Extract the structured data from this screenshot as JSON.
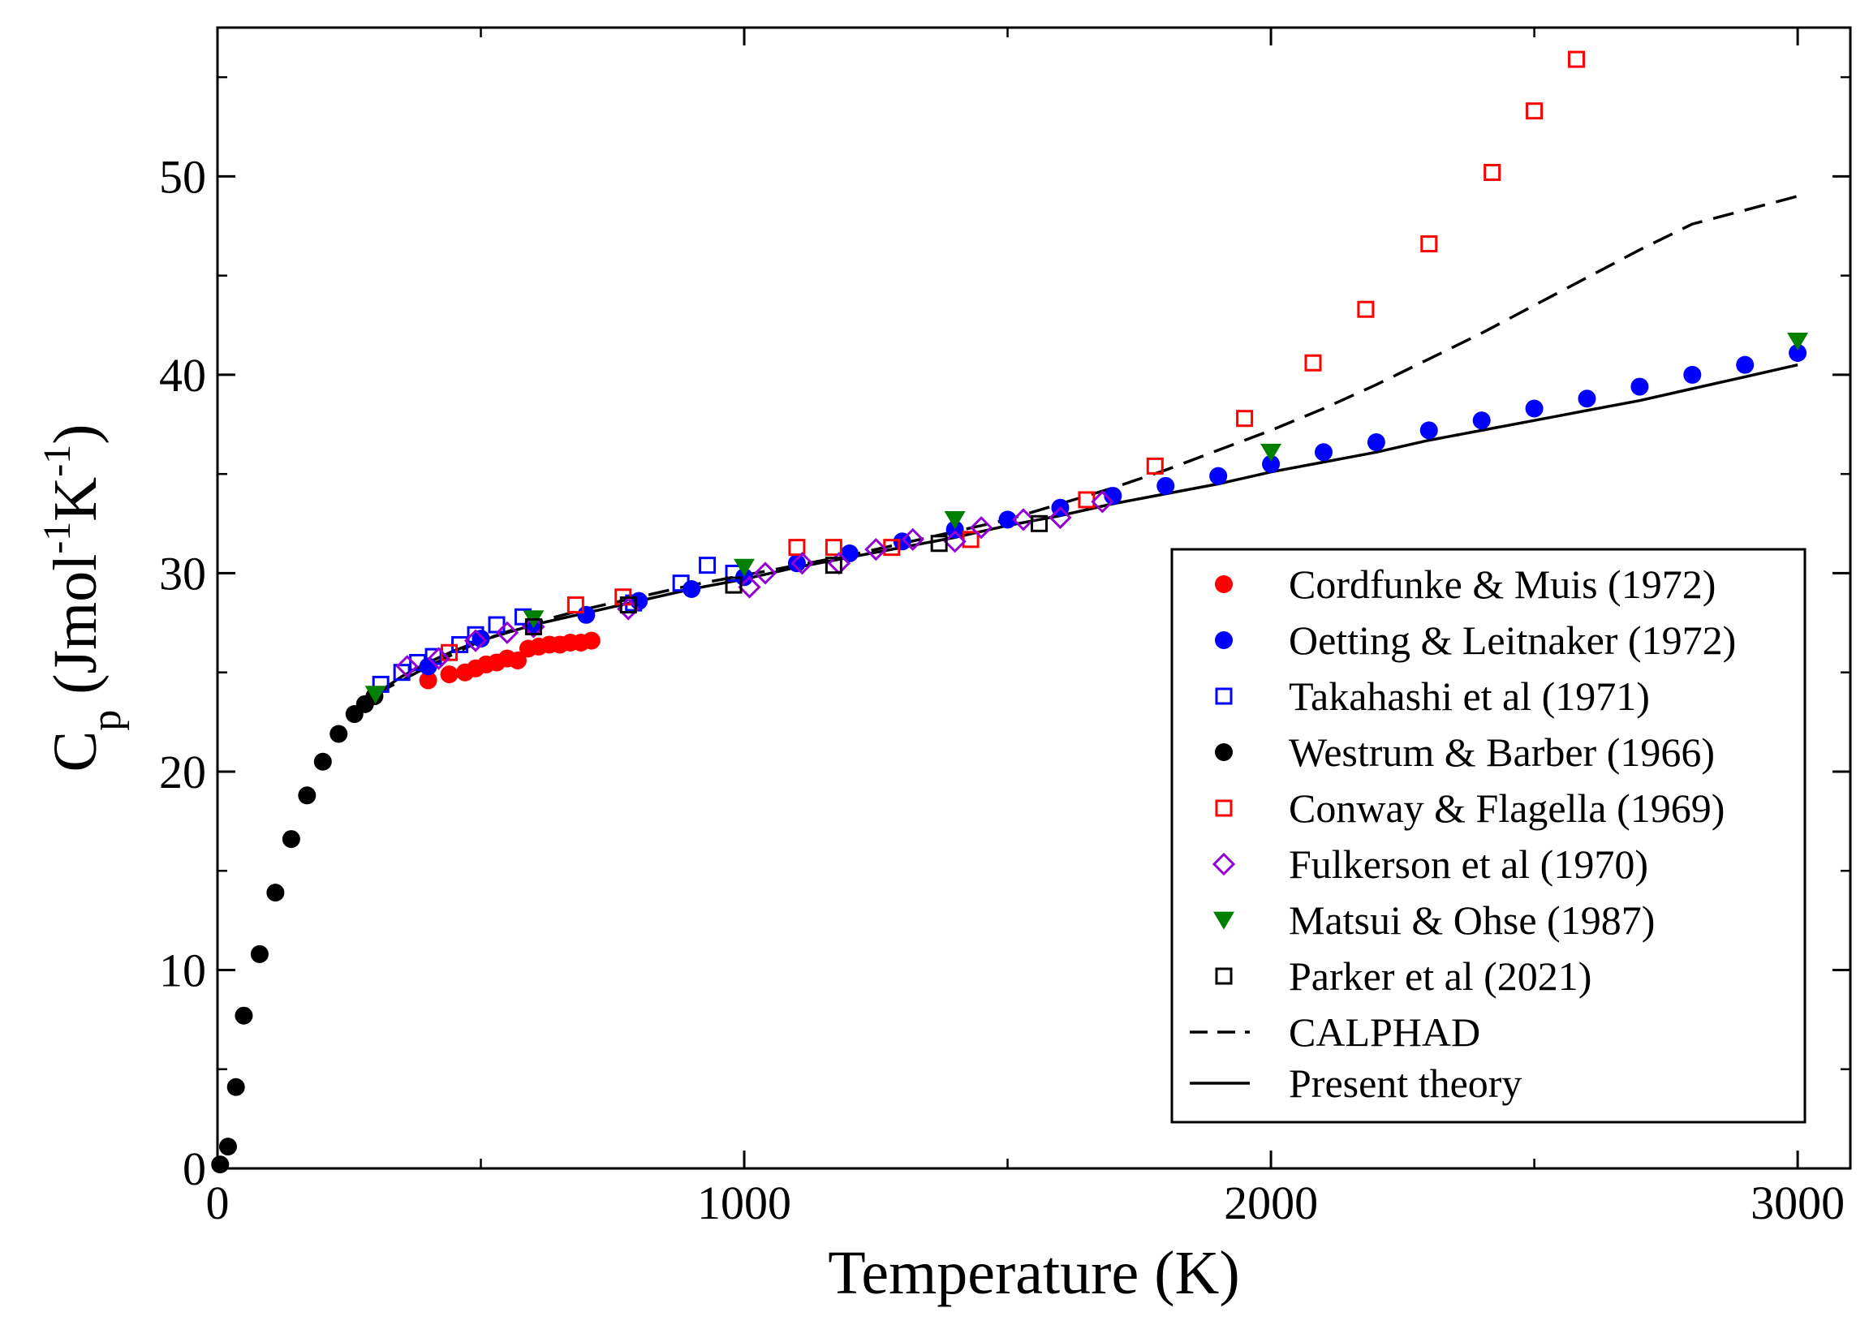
{
  "chart_data": {
    "type": "scatter",
    "title": "",
    "xlabel": "Temperature (K)",
    "ylabel": {
      "main": "C",
      "sub": "p",
      "unit_open": " (Jmol",
      "exp1": "-1",
      "unit_mid": "K",
      "exp2": "-1",
      "unit_close": ")"
    },
    "xlim": [
      0,
      3100
    ],
    "ylim": [
      0,
      57.5
    ],
    "xticks": [
      0,
      1000,
      2000,
      3000
    ],
    "xtick_labels": [
      "0",
      "1000",
      "2000",
      "3000"
    ],
    "yticks": [
      0,
      10,
      20,
      30,
      40,
      50
    ],
    "ytick_labels": [
      "0",
      "10",
      "20",
      "30",
      "40",
      "50"
    ],
    "x_minor_step": 500,
    "y_minor_step": 5,
    "grid": false,
    "legend_position": "bottom-right",
    "series": [
      {
        "name": "Cordfunke & Muis (1972)",
        "marker": "filled-circle",
        "color": "#ff0000",
        "points": [
          [
            400,
            24.6
          ],
          [
            440,
            24.9
          ],
          [
            470,
            25.0
          ],
          [
            490,
            25.2
          ],
          [
            510,
            25.4
          ],
          [
            530,
            25.5
          ],
          [
            550,
            25.7
          ],
          [
            570,
            25.6
          ],
          [
            590,
            26.2
          ],
          [
            610,
            26.3
          ],
          [
            630,
            26.4
          ],
          [
            650,
            26.4
          ],
          [
            670,
            26.5
          ],
          [
            690,
            26.5
          ],
          [
            710,
            26.6
          ]
        ]
      },
      {
        "name": "Oetting & Leitnaker (1972)",
        "marker": "filled-circle",
        "color": "#0000ff",
        "points": [
          [
            400,
            25.3
          ],
          [
            500,
            26.7
          ],
          [
            600,
            27.4
          ],
          [
            700,
            27.9
          ],
          [
            800,
            28.6
          ],
          [
            900,
            29.2
          ],
          [
            1000,
            29.8
          ],
          [
            1100,
            30.5
          ],
          [
            1200,
            31.0
          ],
          [
            1300,
            31.6
          ],
          [
            1400,
            32.2
          ],
          [
            1500,
            32.7
          ],
          [
            1600,
            33.3
          ],
          [
            1700,
            33.9
          ],
          [
            1800,
            34.4
          ],
          [
            1900,
            34.9
          ],
          [
            2000,
            35.5
          ],
          [
            2100,
            36.1
          ],
          [
            2200,
            36.6
          ],
          [
            2300,
            37.2
          ],
          [
            2400,
            37.7
          ],
          [
            2500,
            38.3
          ],
          [
            2600,
            38.8
          ],
          [
            2700,
            39.4
          ],
          [
            2800,
            40.0
          ],
          [
            2900,
            40.5
          ],
          [
            3000,
            41.1
          ]
        ]
      },
      {
        "name": "Takahashi et al (1971)",
        "marker": "open-square",
        "color": "#0000ff",
        "points": [
          [
            310,
            24.4
          ],
          [
            350,
            25.0
          ],
          [
            380,
            25.5
          ],
          [
            410,
            25.8
          ],
          [
            460,
            26.4
          ],
          [
            490,
            26.9
          ],
          [
            530,
            27.4
          ],
          [
            580,
            27.8
          ],
          [
            790,
            28.5
          ],
          [
            880,
            29.5
          ],
          [
            930,
            30.4
          ],
          [
            980,
            30.0
          ]
        ]
      },
      {
        "name": "Westrum & Barber (1966)",
        "marker": "filled-circle",
        "color": "#000000",
        "points": [
          [
            5,
            0.2
          ],
          [
            20,
            1.1
          ],
          [
            35,
            4.1
          ],
          [
            50,
            7.7
          ],
          [
            80,
            10.8
          ],
          [
            110,
            13.9
          ],
          [
            140,
            16.6
          ],
          [
            170,
            18.8
          ],
          [
            200,
            20.5
          ],
          [
            230,
            21.9
          ],
          [
            260,
            22.9
          ],
          [
            280,
            23.4
          ],
          [
            298,
            23.8
          ]
        ]
      },
      {
        "name": "Conway & Flagella (1969)",
        "marker": "open-square",
        "color": "#ff0000",
        "points": [
          [
            440,
            26.0
          ],
          [
            680,
            28.4
          ],
          [
            770,
            28.8
          ],
          [
            1100,
            31.3
          ],
          [
            1170,
            31.3
          ],
          [
            1280,
            31.3
          ],
          [
            1430,
            31.7
          ],
          [
            1650,
            33.7
          ],
          [
            1780,
            35.4
          ],
          [
            1950,
            37.8
          ],
          [
            2080,
            40.6
          ],
          [
            2180,
            43.3
          ],
          [
            2300,
            46.6
          ],
          [
            2420,
            50.2
          ],
          [
            2500,
            53.3
          ],
          [
            2580,
            55.9
          ]
        ]
      },
      {
        "name": "Fulkerson et al (1970)",
        "marker": "open-diamond",
        "color": "#9400d3",
        "points": [
          [
            360,
            25.3
          ],
          [
            420,
            25.7
          ],
          [
            490,
            26.6
          ],
          [
            550,
            27.0
          ],
          [
            600,
            27.3
          ],
          [
            780,
            28.2
          ],
          [
            1010,
            29.3
          ],
          [
            1040,
            30.0
          ],
          [
            1110,
            30.5
          ],
          [
            1180,
            30.5
          ],
          [
            1250,
            31.2
          ],
          [
            1320,
            31.7
          ],
          [
            1400,
            31.6
          ],
          [
            1450,
            32.3
          ],
          [
            1530,
            32.7
          ],
          [
            1600,
            32.8
          ],
          [
            1680,
            33.6
          ]
        ]
      },
      {
        "name": "Matsui & Ohse (1987)",
        "marker": "filled-triangle-down",
        "color": "#008000",
        "points": [
          [
            300,
            23.9
          ],
          [
            600,
            27.7
          ],
          [
            1000,
            30.3
          ],
          [
            1400,
            32.7
          ],
          [
            2000,
            36.1
          ],
          [
            3000,
            41.7
          ]
        ]
      },
      {
        "name": "Parker et al (2021)",
        "marker": "open-square",
        "color": "#000000",
        "points": [
          [
            600,
            27.3
          ],
          [
            780,
            28.4
          ],
          [
            980,
            29.4
          ],
          [
            1170,
            30.4
          ],
          [
            1370,
            31.5
          ],
          [
            1560,
            32.5
          ]
        ]
      }
    ],
    "lines": [
      {
        "name": "CALPHAD",
        "style": "dashed",
        "color": "#000000",
        "x": [
          300,
          400,
          500,
          600,
          700,
          800,
          900,
          1000,
          1100,
          1200,
          1300,
          1400,
          1500,
          1600,
          1700,
          1800,
          1900,
          2000,
          2100,
          2200,
          2300,
          2400,
          2500,
          2600,
          2700,
          2800,
          2900,
          3000
        ],
        "y": [
          23.9,
          25.3,
          26.6,
          27.5,
          28.2,
          28.8,
          29.4,
          29.9,
          30.4,
          30.9,
          31.5,
          32.1,
          32.7,
          33.5,
          34.3,
          35.2,
          36.2,
          37.2,
          38.3,
          39.5,
          40.8,
          42.1,
          43.5,
          44.9,
          46.3,
          47.6,
          48.3,
          49.0
        ]
      },
      {
        "name": "Present theory",
        "style": "solid",
        "color": "#000000",
        "x": [
          300,
          350,
          400,
          450,
          500,
          600,
          700,
          800,
          900,
          1000,
          1100,
          1200,
          1300,
          1400,
          1500,
          1600,
          1700,
          1800,
          1900,
          2000,
          2100,
          2200,
          2300,
          2400,
          2500,
          2600,
          2700,
          2800,
          2900,
          3000
        ],
        "y": [
          23.9,
          24.8,
          25.5,
          26.1,
          26.6,
          27.4,
          28.0,
          28.6,
          29.2,
          29.7,
          30.3,
          30.8,
          31.3,
          31.8,
          32.4,
          32.9,
          33.5,
          34.0,
          34.5,
          35.1,
          35.6,
          36.1,
          36.7,
          37.2,
          37.7,
          38.2,
          38.7,
          39.3,
          39.9,
          40.5
        ]
      }
    ]
  }
}
